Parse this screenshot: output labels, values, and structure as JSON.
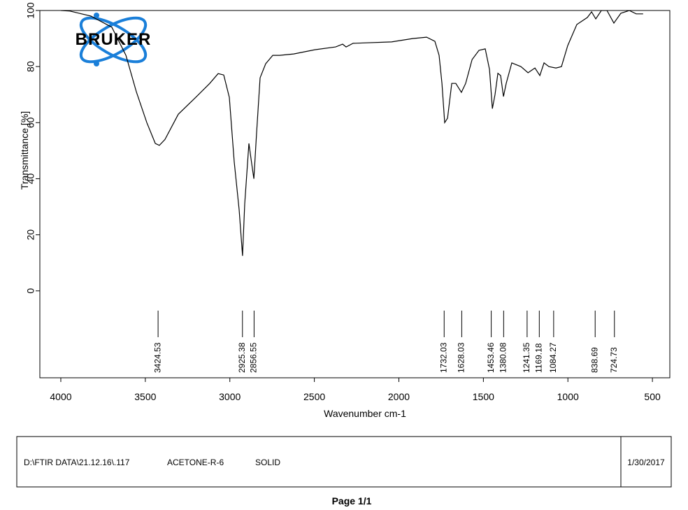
{
  "chart_data": {
    "type": "line",
    "xlabel": "Wavenumber cm-1",
    "ylabel": "Transmittance [%]",
    "x": [
      4000,
      3946,
      3822,
      3698,
      3615,
      3553,
      3491,
      3441,
      3417,
      3384,
      3305,
      3202,
      3119,
      3069,
      3036,
      3003,
      2974,
      2945,
      2925,
      2912,
      2887,
      2870,
      2858,
      2842,
      2821,
      2788,
      2746,
      2705,
      2622,
      2498,
      2374,
      2333,
      2312,
      2271,
      2043,
      1919,
      1836,
      1787,
      1762,
      1745,
      1729,
      1712,
      1687,
      1663,
      1630,
      1605,
      1567,
      1526,
      1489,
      1464,
      1447,
      1431,
      1414,
      1398,
      1381,
      1365,
      1332,
      1278,
      1236,
      1195,
      1166,
      1141,
      1112,
      1071,
      1038,
      1001,
      947,
      885,
      860,
      835,
      802,
      769,
      728,
      687,
      637,
      596,
      555
    ],
    "series": [
      {
        "color": "#000000",
        "values": [
          100,
          99.8,
          98,
          94,
          84,
          71,
          60,
          52.6,
          51.9,
          54,
          63,
          69,
          74,
          77.5,
          77,
          69,
          46,
          29,
          12.5,
          31,
          52.6,
          45,
          40,
          56,
          76,
          81,
          84,
          84,
          84.5,
          86,
          87,
          88,
          87,
          88.3,
          88.8,
          90,
          90.5,
          89,
          84,
          74,
          60,
          61.6,
          74,
          74,
          70.8,
          74,
          82.5,
          85.8,
          86.3,
          79,
          65,
          70,
          77.6,
          76.8,
          69.3,
          74,
          81.3,
          80,
          77.8,
          79.5,
          76.8,
          81.3,
          80,
          79.5,
          80,
          87.5,
          95,
          97.5,
          99.5,
          97,
          100,
          100,
          95.5,
          99,
          100,
          98.8,
          98.8
        ]
      }
    ],
    "xlim": [
      4124,
      397
    ],
    "xticks": [
      4000,
      3500,
      3000,
      2500,
      2000,
      1500,
      1000,
      500
    ],
    "ylim": [
      -31,
      100
    ],
    "yticks": [
      0,
      20,
      40,
      60,
      80,
      100
    ],
    "peaks": [
      3424.53,
      2925.38,
      2856.55,
      1732.03,
      1628.03,
      1453.46,
      1380.08,
      1241.35,
      1169.18,
      1084.27,
      838.69,
      724.73
    ]
  },
  "logo": "BRUKER",
  "footer": {
    "file": "D:\\FTIR DATA\\21.12.16\\.117",
    "sample": "ACETONE-R-6",
    "form": "SOLID",
    "date": "1/30/2017"
  },
  "page": "Page 1/1"
}
